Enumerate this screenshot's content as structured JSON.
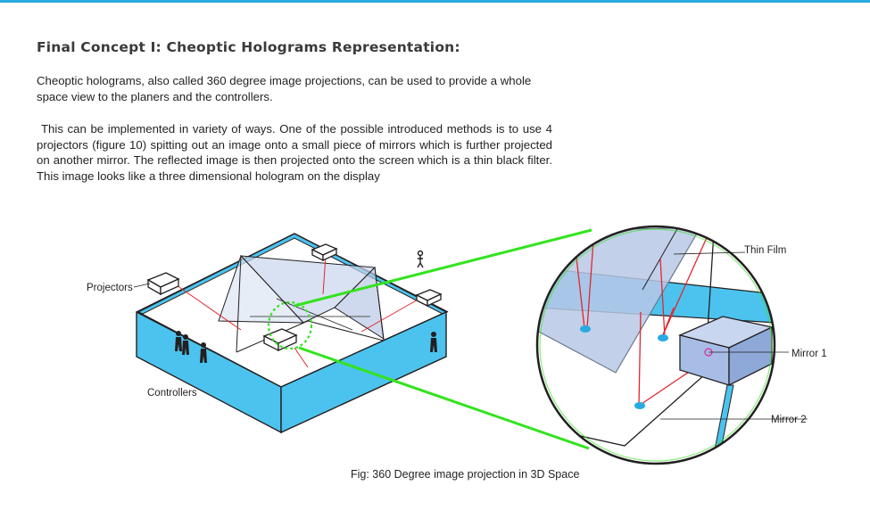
{
  "heading": "Final Concept I: Cheoptic Holograms Representation:",
  "paragraphs": [
    "Cheoptic holograms, also called 360 degree image projections, can be used to provide a whole space view to the planers and the controllers.",
    "This can be implemented in variety of ways. One of the possible introduced methods is to use 4 projectors (figure 10) spitting out an image onto a small piece of mirrors  which is further projected on another mirror. The reflected image is then projected onto the screen which is a thin black filter. This image looks like a three dimensional hologram on the display"
  ],
  "figure": {
    "labels": {
      "projectors": "Projectors",
      "controllers": "Controllers",
      "thin_film": "Thin Film",
      "mirror1": "Mirror 1",
      "mirror2": "Mirror 2"
    },
    "caption": "Fig: 360 Degree image projection in 3D Space"
  },
  "colors": {
    "accent_rule": "#29abe2",
    "table_blue": "#4cc3ee",
    "callout_green": "#33e31f",
    "projection_red": "#e2262d",
    "mirror_blue": "#a7bde5",
    "film_blue": "#b8c8e6"
  }
}
